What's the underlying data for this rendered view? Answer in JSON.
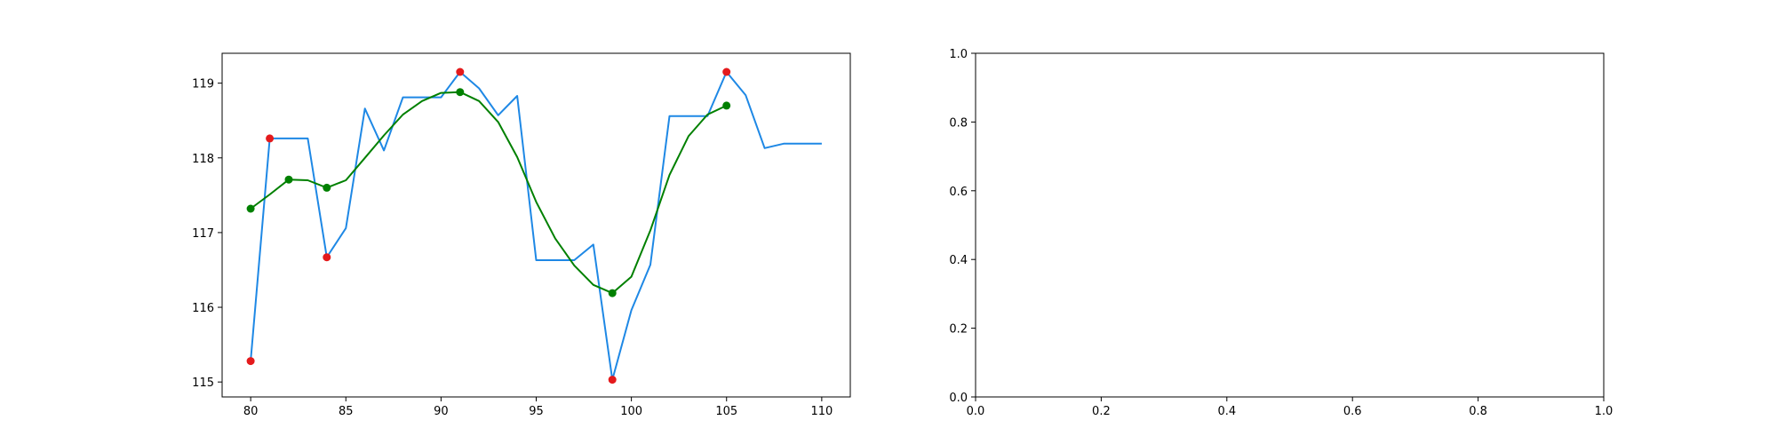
{
  "chart_data": [
    {
      "type": "line",
      "xlim": [
        78.5,
        111.5
      ],
      "ylim": [
        114.8,
        119.4
      ],
      "xticks": [
        80,
        85,
        90,
        95,
        100,
        105,
        110
      ],
      "yticks": [
        115,
        116,
        117,
        118,
        119
      ],
      "grid": false,
      "series": [
        {
          "kind": "line",
          "color": "#1e88e5",
          "x": [
            80,
            81,
            82,
            83,
            84,
            85,
            86,
            87,
            88,
            89,
            90,
            91,
            92,
            93,
            94,
            95,
            96,
            97,
            98,
            99,
            100,
            101,
            102,
            103,
            104,
            105,
            106,
            107,
            108,
            109,
            110
          ],
          "y": [
            115.28,
            118.26,
            118.26,
            118.26,
            116.67,
            117.06,
            118.66,
            118.1,
            118.81,
            118.81,
            118.81,
            119.15,
            118.93,
            118.57,
            118.83,
            116.63,
            116.63,
            116.63,
            116.84,
            115.03,
            115.96,
            116.57,
            118.56,
            118.56,
            118.56,
            119.15,
            118.84,
            118.13,
            118.19,
            118.19,
            118.19
          ]
        },
        {
          "kind": "line",
          "color": "#008000",
          "x": [
            80,
            81,
            82,
            83,
            84,
            85,
            86,
            87,
            88,
            89,
            90,
            91,
            92,
            93,
            94,
            95,
            96,
            97,
            98,
            99,
            100,
            101,
            102,
            103,
            104,
            105
          ],
          "y": [
            117.32,
            117.51,
            117.71,
            117.7,
            117.6,
            117.7,
            118.0,
            118.3,
            118.58,
            118.76,
            118.87,
            118.88,
            118.76,
            118.48,
            118.01,
            117.41,
            116.92,
            116.56,
            116.3,
            116.19,
            116.41,
            117.03,
            117.77,
            118.29,
            118.58,
            118.7
          ]
        },
        {
          "kind": "scatter",
          "color": "#e41a1c",
          "x": [
            80,
            81,
            84,
            91,
            99,
            105
          ],
          "y": [
            115.28,
            118.26,
            116.67,
            119.15,
            115.03,
            119.15
          ]
        },
        {
          "kind": "scatter",
          "color": "#008000",
          "x": [
            80,
            82,
            84,
            91,
            99,
            105
          ],
          "y": [
            117.32,
            117.71,
            117.6,
            118.88,
            116.19,
            118.7
          ]
        }
      ]
    },
    {
      "type": "line",
      "xlim": [
        0,
        1
      ],
      "ylim": [
        0,
        1
      ],
      "xticks": [
        0.0,
        0.2,
        0.4,
        0.6,
        0.8,
        1.0
      ],
      "yticks": [
        0.0,
        0.2,
        0.4,
        0.6,
        0.8,
        1.0
      ],
      "xtick_labels": [
        "0.0",
        "0.2",
        "0.4",
        "0.6",
        "0.8",
        "1.0"
      ],
      "ytick_labels": [
        "0.0",
        "0.2",
        "0.4",
        "0.6",
        "0.8",
        "1.0"
      ],
      "grid": false,
      "series": []
    }
  ]
}
